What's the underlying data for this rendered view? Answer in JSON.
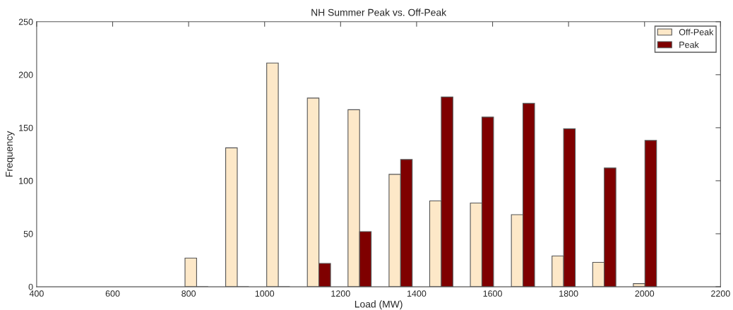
{
  "chart_data": {
    "type": "bar",
    "title": "NH Summer Peak vs. Off-Peak",
    "xlabel": "Load (MW)",
    "ylabel": "Frequency",
    "x": [
      821,
      928,
      1036,
      1143,
      1250,
      1358,
      1465,
      1572,
      1680,
      1787,
      1894,
      2001
    ],
    "series": [
      {
        "name": "Off-Peak",
        "color": "#fde8c8",
        "values": [
          27,
          131,
          211,
          178,
          167,
          106,
          81,
          79,
          68,
          29,
          23,
          3
        ]
      },
      {
        "name": "Peak",
        "color": "#7f0000",
        "values": [
          0,
          0,
          0,
          22,
          52,
          120,
          179,
          160,
          173,
          149,
          112,
          138
        ]
      }
    ],
    "xlim": [
      400,
      2200
    ],
    "xticks": [
      400,
      600,
      800,
      1000,
      1200,
      1400,
      1600,
      1800,
      2000,
      2200
    ],
    "ylim": [
      0,
      250
    ],
    "yticks": [
      0,
      50,
      100,
      150,
      200,
      250
    ],
    "grid": false,
    "legend": "top right"
  }
}
